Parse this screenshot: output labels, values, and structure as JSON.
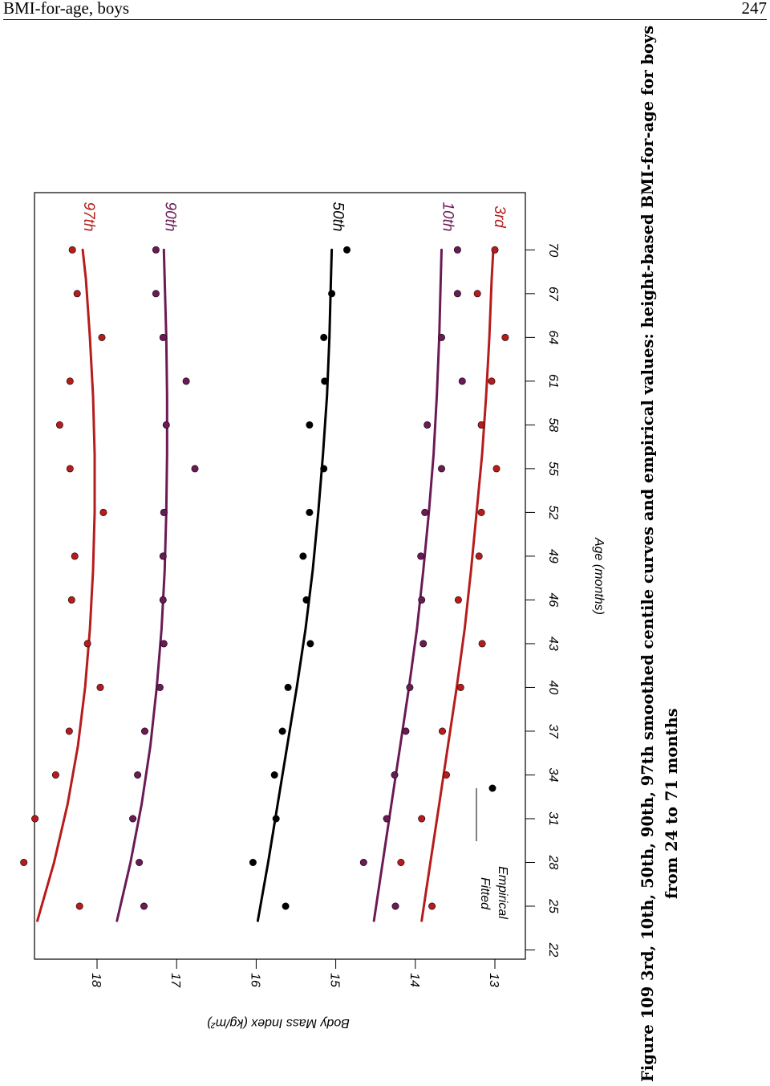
{
  "header": {
    "title": "BMI-for-age, boys",
    "page": "247"
  },
  "caption": {
    "line1": "Figure 109  3rd, 10th, 50th, 90th, 97th smoothed centile curves and empirical values: height-based BMI-for-age for boys",
    "line2": "from 24 to 71 months"
  },
  "chart_data": {
    "type": "line",
    "xlabel": "Age (months)",
    "ylabel": "Body Mass Index (kg/m²)",
    "xlim": [
      21,
      72
    ],
    "ylim": [
      12.6,
      18.8
    ],
    "x_ticks": [
      22,
      25,
      28,
      31,
      34,
      37,
      40,
      43,
      46,
      49,
      52,
      55,
      58,
      61,
      64,
      67,
      70
    ],
    "y_ticks": [
      13,
      14,
      15,
      16,
      17,
      18
    ],
    "legend": {
      "position": "bottom-left",
      "fitted": "Fitted",
      "empirical": "Empirical"
    },
    "x": [
      25,
      28,
      31,
      34,
      37,
      40,
      43,
      46,
      49,
      52,
      55,
      58,
      61,
      64,
      67,
      70
    ],
    "series": [
      {
        "name": "97th",
        "color": "#b71c1c",
        "fitted": [
          [
            24,
            18.75
          ],
          [
            28,
            18.54
          ],
          [
            32,
            18.37
          ],
          [
            36,
            18.24
          ],
          [
            40,
            18.15
          ],
          [
            44,
            18.09
          ],
          [
            48,
            18.05
          ],
          [
            52,
            18.03
          ],
          [
            56,
            18.03
          ],
          [
            60,
            18.05
          ],
          [
            64,
            18.09
          ],
          [
            68,
            18.14
          ],
          [
            70,
            18.18
          ]
        ],
        "empirical": [
          18.22,
          18.92,
          18.78,
          18.52,
          18.35,
          17.96,
          18.12,
          18.32,
          18.28,
          17.92,
          18.34,
          18.47,
          18.34,
          17.94,
          18.25,
          18.31
        ]
      },
      {
        "name": "90th",
        "color": "#6b1a55",
        "fitted": [
          [
            24,
            17.75
          ],
          [
            28,
            17.58
          ],
          [
            32,
            17.44
          ],
          [
            36,
            17.33
          ],
          [
            40,
            17.25
          ],
          [
            44,
            17.19
          ],
          [
            48,
            17.15
          ],
          [
            52,
            17.13
          ],
          [
            56,
            17.12
          ],
          [
            60,
            17.12
          ],
          [
            64,
            17.13
          ],
          [
            68,
            17.15
          ],
          [
            70,
            17.16
          ]
        ],
        "empirical": [
          17.41,
          17.47,
          17.55,
          17.49,
          17.4,
          17.21,
          17.16,
          17.17,
          17.17,
          17.16,
          16.77,
          17.13,
          16.88,
          17.17,
          17.26,
          17.26
        ]
      },
      {
        "name": "50th",
        "color": "#000000",
        "fitted": [
          [
            24,
            15.98
          ],
          [
            28,
            15.85
          ],
          [
            32,
            15.73
          ],
          [
            36,
            15.61
          ],
          [
            40,
            15.49
          ],
          [
            44,
            15.38
          ],
          [
            48,
            15.29
          ],
          [
            52,
            15.22
          ],
          [
            56,
            15.16
          ],
          [
            60,
            15.11
          ],
          [
            64,
            15.08
          ],
          [
            68,
            15.06
          ],
          [
            70,
            15.05
          ]
        ],
        "empirical": [
          15.63,
          16.04,
          15.75,
          15.77,
          15.67,
          15.6,
          15.32,
          15.37,
          15.41,
          15.33,
          15.15,
          15.33,
          15.14,
          15.15,
          15.05,
          14.86
        ]
      },
      {
        "name": "10th",
        "color": "#6b1a55",
        "fitted": [
          [
            24,
            14.52
          ],
          [
            28,
            14.41
          ],
          [
            32,
            14.3
          ],
          [
            36,
            14.19
          ],
          [
            40,
            14.08
          ],
          [
            44,
            13.98
          ],
          [
            48,
            13.9
          ],
          [
            52,
            13.83
          ],
          [
            56,
            13.77
          ],
          [
            60,
            13.73
          ],
          [
            64,
            13.7
          ],
          [
            68,
            13.68
          ],
          [
            70,
            13.67
          ]
        ],
        "empirical": [
          14.25,
          14.65,
          14.36,
          14.26,
          14.12,
          14.07,
          13.9,
          13.92,
          13.93,
          13.88,
          13.67,
          13.85,
          13.41,
          13.67,
          13.47,
          13.47
        ]
      },
      {
        "name": "3rd",
        "color": "#b71c1c",
        "fitted": [
          [
            24,
            13.92
          ],
          [
            28,
            13.81
          ],
          [
            32,
            13.7
          ],
          [
            36,
            13.59
          ],
          [
            40,
            13.48
          ],
          [
            44,
            13.38
          ],
          [
            48,
            13.3
          ],
          [
            52,
            13.23
          ],
          [
            56,
            13.16
          ],
          [
            60,
            13.11
          ],
          [
            64,
            13.07
          ],
          [
            68,
            13.04
          ],
          [
            70,
            13.02
          ]
        ],
        "empirical": [
          13.79,
          14.18,
          13.92,
          13.61,
          13.66,
          13.43,
          13.16,
          13.46,
          13.2,
          13.17,
          12.98,
          13.17,
          13.04,
          12.87,
          13.22,
          13.0
        ]
      }
    ]
  }
}
